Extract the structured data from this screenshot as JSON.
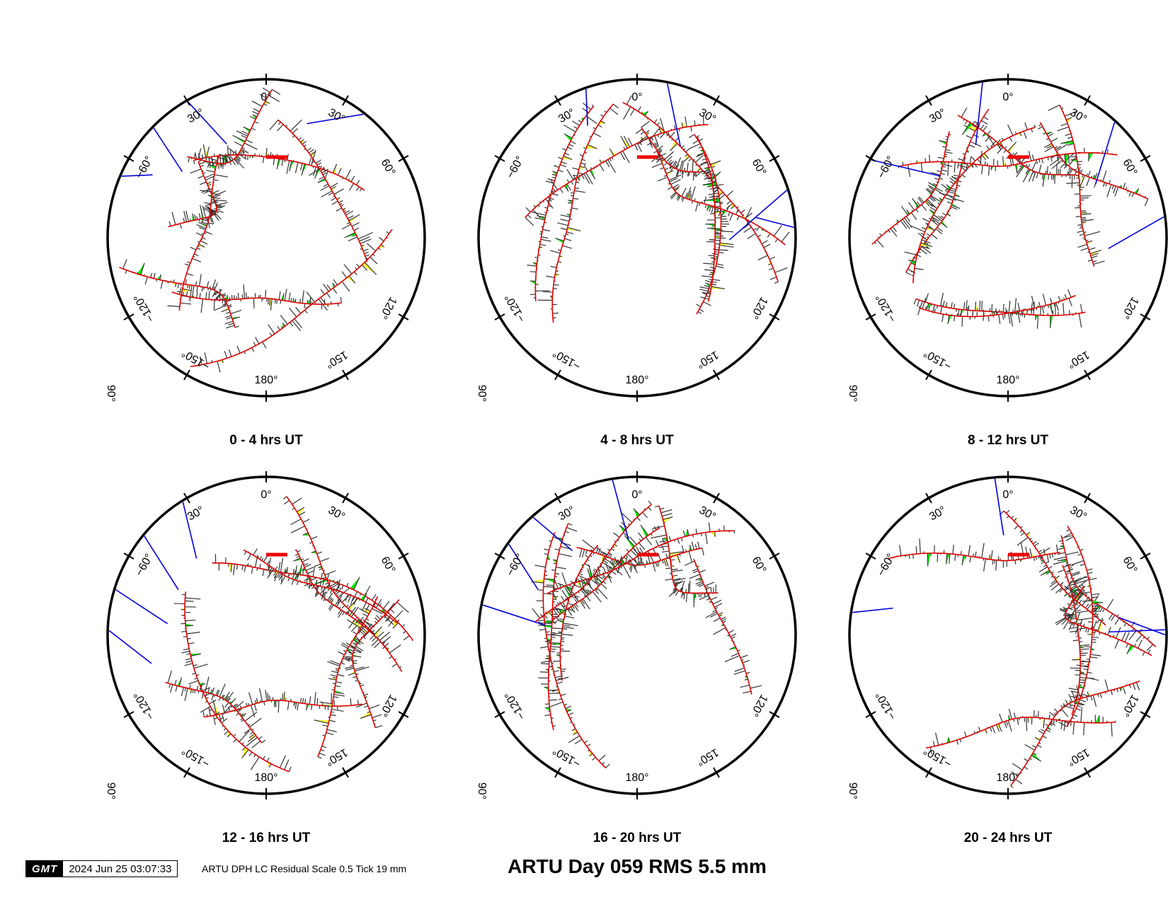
{
  "main_title": "ARTU Day 059 RMS 5.5 mm",
  "footer": {
    "logo": "GMT",
    "timestamp": "2024 Jun 25 03:07:33",
    "caption": "ARTU DPH LC Residual Scale 0.5 Tick 19 mm"
  },
  "colors": {
    "frame": "#000000",
    "residual": "#333333",
    "arc": "#e00000",
    "positive_fill": "#ffff33",
    "negative_fill": "#00ee00",
    "low_elevation": "#0000dd",
    "scale_bar": "#ee0000"
  },
  "chart_data": [
    {
      "type": "polar-skyplot",
      "title": "0 - 4 hrs UT",
      "radial_label": "90°",
      "azimuth_ticks": [
        "0°",
        "30°",
        "60°",
        "120°",
        "150°",
        "180°",
        "−150°",
        "−120°",
        "−60°",
        "30°"
      ],
      "scale_bar_mm": 19,
      "tracks": 8
    },
    {
      "type": "polar-skyplot",
      "title": "4 - 8 hrs UT",
      "radial_label": "90°",
      "azimuth_ticks": [
        "0°",
        "30°",
        "60°",
        "120°",
        "150°",
        "180°",
        "−150°",
        "−120°",
        "−60°",
        "30°"
      ],
      "scale_bar_mm": 19,
      "tracks": 8
    },
    {
      "type": "polar-skyplot",
      "title": "8 - 12 hrs UT",
      "radial_label": "90°",
      "azimuth_ticks": [
        "0°",
        "30°",
        "60°",
        "120°",
        "150°",
        "180°",
        "−150°",
        "−120°",
        "−60°",
        "30°"
      ],
      "scale_bar_mm": 19,
      "tracks": 9
    },
    {
      "type": "polar-skyplot",
      "title": "12 - 16 hrs UT",
      "radial_label": "90°",
      "azimuth_ticks": [
        "0°",
        "30°",
        "60°",
        "120°",
        "150°",
        "180°",
        "−150°",
        "−120°",
        "−60°",
        "30°"
      ],
      "scale_bar_mm": 19,
      "tracks": 9
    },
    {
      "type": "polar-skyplot",
      "title": "16 - 20 hrs UT",
      "radial_label": "90°",
      "azimuth_ticks": [
        "0°",
        "30°",
        "60°",
        "120°",
        "150°",
        "180°",
        "−150°",
        "−120°",
        "−60°",
        "30°"
      ],
      "scale_bar_mm": 19,
      "tracks": 9
    },
    {
      "type": "polar-skyplot",
      "title": "20 - 24 hrs UT",
      "radial_label": "90°",
      "azimuth_ticks": [
        "0°",
        "30°",
        "60°",
        "120°",
        "150°",
        "180°",
        "−150°",
        "−120°",
        "−60°",
        "30°"
      ],
      "scale_bar_mm": 19,
      "tracks": 8
    }
  ]
}
